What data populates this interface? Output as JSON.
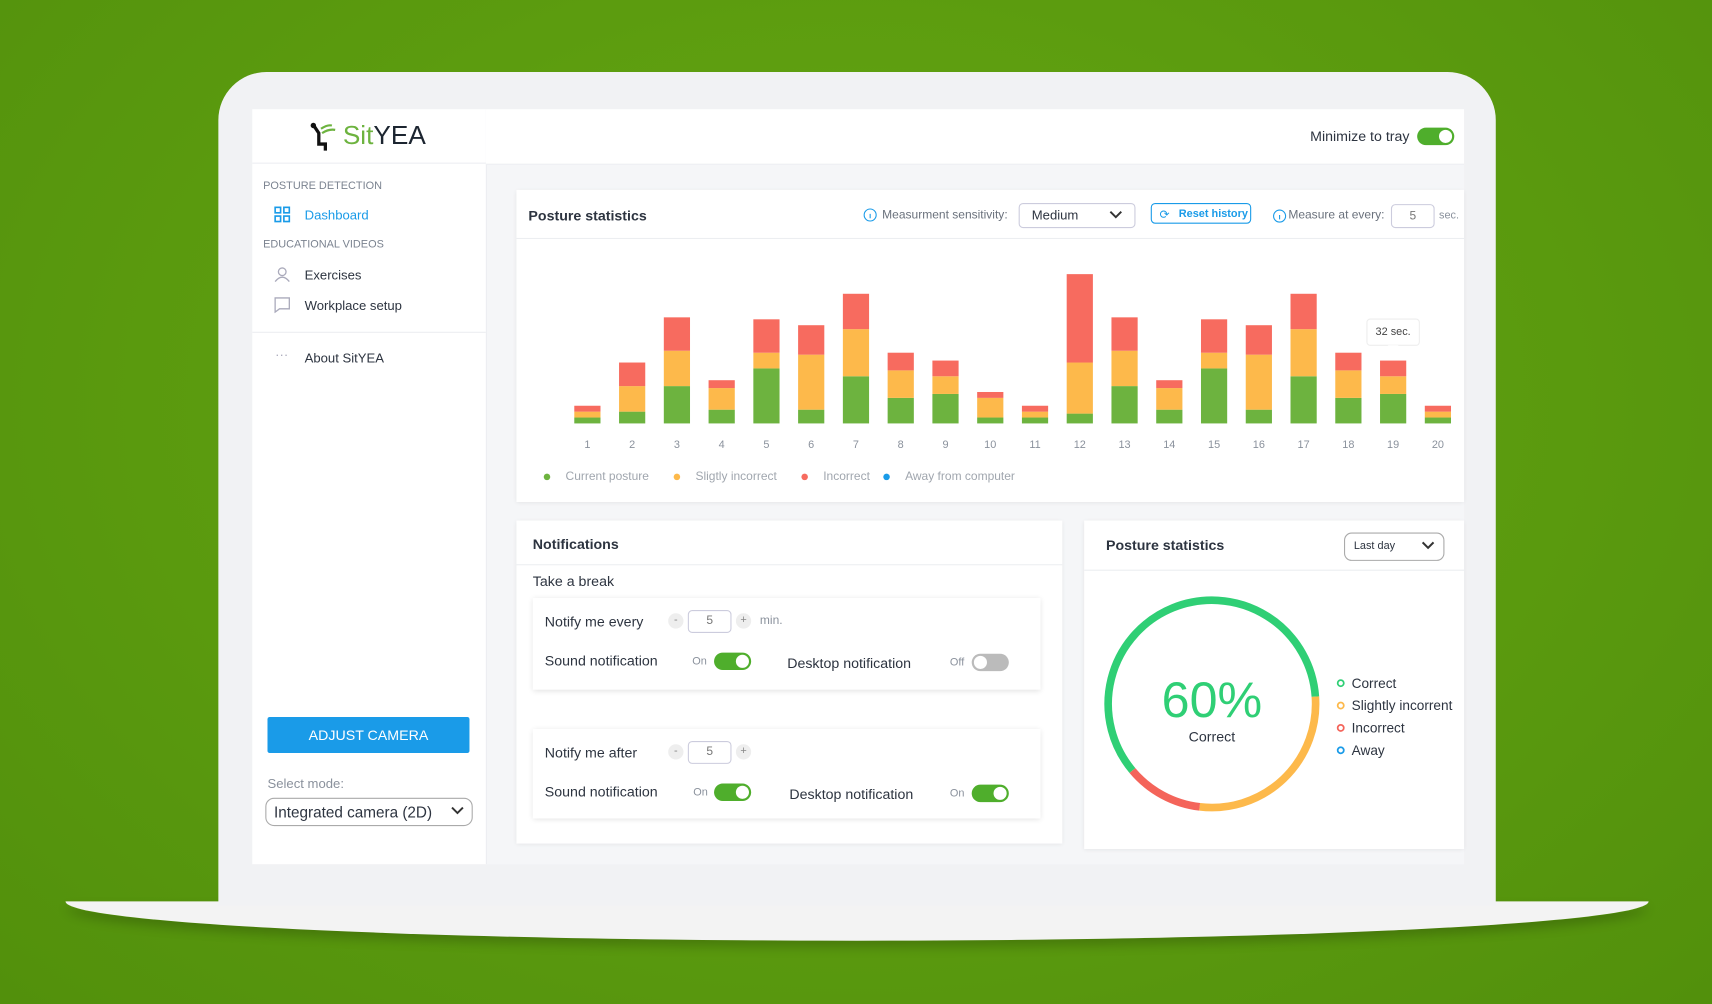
{
  "logo": {
    "part1": "Sit",
    "part2": "YEA"
  },
  "sidebar": {
    "section1": "POSTURE DETECTION",
    "dashboard": "Dashboard",
    "section2": "EDUCATIONAL VIDEOS",
    "exercises": "Exercises",
    "workplace": "Workplace setup",
    "about": "About SitYEA",
    "button": "ADJUST CAMERA",
    "mode_label": "Select mode:",
    "mode_value": "Integrated camera (2D)"
  },
  "header": {
    "minimize": "Minimize to tray",
    "minimize_on": true
  },
  "stats_card": {
    "title": "Posture statistics",
    "sensitivity_label": "Measurment sensitivity:",
    "sensitivity_value": "Medium",
    "reset": "Reset history",
    "measure_label": "Measure at every:",
    "measure_value": "5",
    "measure_unit": "sec."
  },
  "chart_data": [
    {
      "type": "stacked_bar",
      "categories": [
        "1",
        "2",
        "3",
        "4",
        "5",
        "6",
        "7",
        "8",
        "9",
        "10",
        "11",
        "12",
        "13",
        "14",
        "15",
        "16",
        "17",
        "18",
        "19",
        "20"
      ],
      "series": [
        {
          "name": "Current posture",
          "color": "#6db33f",
          "values": [
            3,
            6,
            19,
            7,
            28,
            7,
            24,
            13,
            15,
            3,
            3,
            5,
            19,
            7,
            28,
            7,
            24,
            13,
            15,
            3
          ]
        },
        {
          "name": "Sligtly incorrect",
          "color": "#fdb94b",
          "values": [
            3,
            13,
            18,
            11,
            8,
            28,
            24,
            14,
            9,
            10,
            3,
            26,
            18,
            11,
            8,
            28,
            24,
            14,
            9,
            3
          ]
        },
        {
          "name": "Incorrect",
          "color": "#f76b5f",
          "values": [
            3,
            12,
            17,
            4,
            17,
            15,
            18,
            9,
            8,
            3,
            3,
            45,
            17,
            4,
            17,
            15,
            18,
            9,
            8,
            3
          ]
        },
        {
          "name": "Away from computer",
          "color": "#1a9be8",
          "values": [
            0,
            0,
            0,
            0,
            0,
            0,
            0,
            0,
            0,
            0,
            0,
            0,
            0,
            0,
            0,
            0,
            0,
            0,
            0,
            0
          ]
        }
      ],
      "ylim": [
        0,
        80
      ],
      "tooltip": "32 sec.",
      "tooltip_index": 18
    },
    {
      "type": "donut",
      "title": "Posture statistics",
      "period": "Last day",
      "categories": [
        "Correct",
        "Slightly incorrent",
        "Incorrect",
        "Away"
      ],
      "values": [
        60,
        28,
        12,
        0
      ],
      "value_labels": [
        "60%",
        null,
        null,
        null
      ],
      "colors": [
        "#2fcf75",
        "#fdb94b",
        "#f4645a",
        "#1a9be8"
      ]
    }
  ],
  "notifications": {
    "title": "Notifications",
    "subtitle": "Take a break",
    "boxes": [
      {
        "label": "Notify me every",
        "value": "5",
        "unit": "min.",
        "sound": "Sound notification",
        "sound_state": "On",
        "sound_on": true,
        "desktop": "Desktop notification",
        "desktop_state": "Off",
        "desktop_on": false
      },
      {
        "label": "Notify me after",
        "value": "5",
        "sound": "Sound notification",
        "sound_state": "On",
        "sound_on": true,
        "desktop": "Desktop notification",
        "desktop_state": "On",
        "desktop_on": true
      }
    ]
  }
}
